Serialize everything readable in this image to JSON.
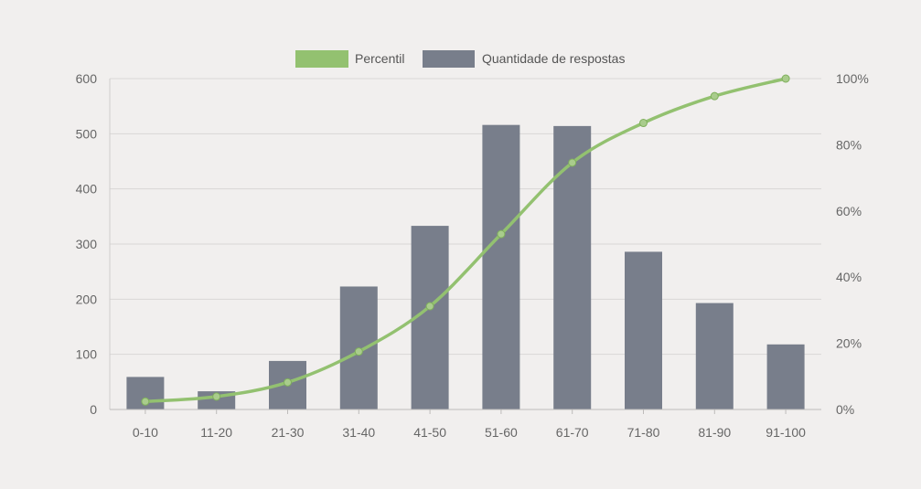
{
  "chart_data": {
    "type": "bar",
    "categories": [
      "0-10",
      "11-20",
      "21-30",
      "31-40",
      "41-50",
      "51-60",
      "61-70",
      "71-80",
      "81-90",
      "91-100"
    ],
    "series": [
      {
        "name": "Quantidade de respostas",
        "type": "bar",
        "axis": "left",
        "color": "#787e8b",
        "values": [
          59,
          33,
          88,
          223,
          333,
          516,
          514,
          286,
          193,
          118
        ]
      },
      {
        "name": "Percentil",
        "type": "line",
        "axis": "right",
        "color": "#93c170",
        "smooth": true,
        "values": [
          2.4,
          3.9,
          8.2,
          17.5,
          31.2,
          53.0,
          74.6,
          86.6,
          94.7,
          100
        ]
      }
    ],
    "y_left": {
      "ylim": [
        0,
        600
      ],
      "ticks": [
        "0",
        "100",
        "200",
        "300",
        "400",
        "500",
        "600"
      ]
    },
    "y_right": {
      "ylim": [
        0,
        100
      ],
      "ticks": [
        "0%",
        "20%",
        "40%",
        "60%",
        "80%",
        "100%"
      ]
    },
    "legend": {
      "placement": "top-center"
    },
    "grid": true,
    "title": "",
    "xlabel": "",
    "ylabel": ""
  }
}
